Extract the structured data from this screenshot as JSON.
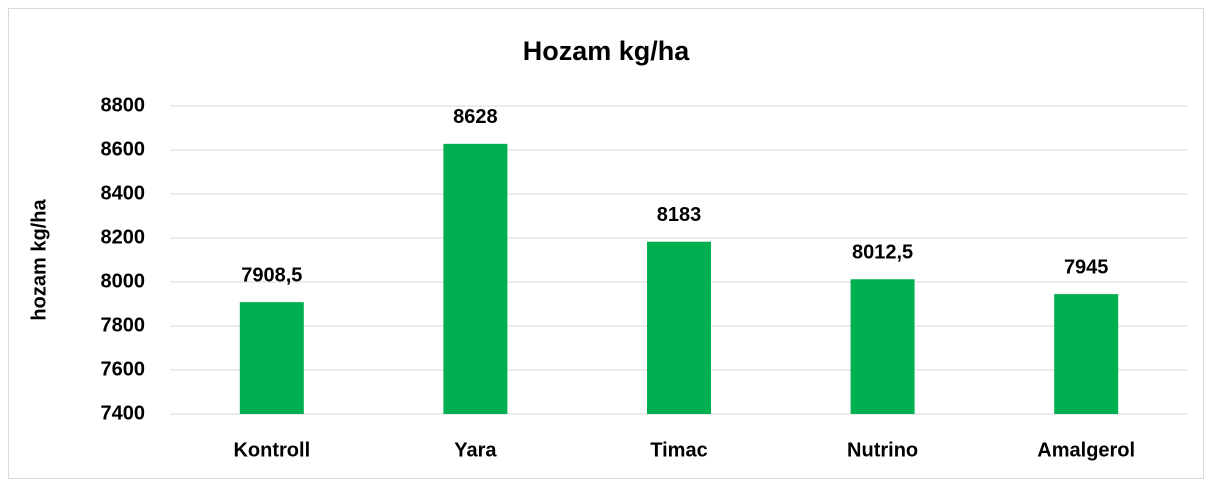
{
  "chart_data": {
    "type": "bar",
    "title": "Hozam kg/ha",
    "y_label": "hozam kg/ha",
    "categories": [
      "Kontroll",
      "Yara",
      "Timac",
      "Nutrino",
      "Amalgerol"
    ],
    "values": [
      7908.5,
      8628,
      8183,
      8012.5,
      7945
    ],
    "value_labels": [
      "7908,5",
      "8628",
      "8183",
      "8012,5",
      "7945"
    ],
    "color": "#00b050",
    "ylim": [
      7400,
      8800
    ],
    "yticks": [
      7400,
      7600,
      7800,
      8000,
      8200,
      8400,
      8600,
      8800
    ],
    "grid": true
  }
}
